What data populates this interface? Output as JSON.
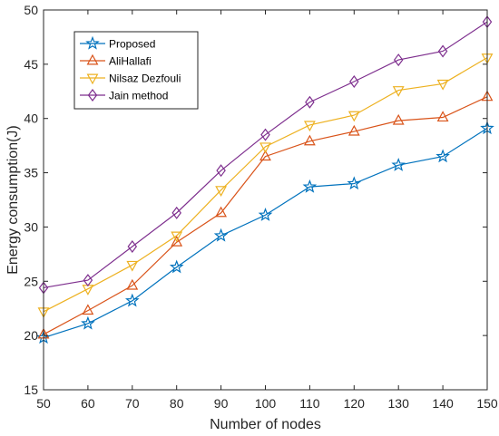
{
  "chart_data": {
    "type": "line",
    "title": "",
    "xlabel": "Number of nodes",
    "ylabel": "Energy consumption(J)",
    "x": [
      50,
      60,
      70,
      80,
      90,
      100,
      110,
      120,
      130,
      140,
      150
    ],
    "xlim": [
      50,
      150
    ],
    "ylim": [
      15,
      50
    ],
    "xticks": [
      "50",
      "60",
      "70",
      "80",
      "90",
      "100",
      "110",
      "120",
      "130",
      "140",
      "150"
    ],
    "yticks": [
      "15",
      "20",
      "25",
      "30",
      "35",
      "40",
      "45",
      "50"
    ],
    "grid": false,
    "legend_position": "top-left",
    "series": [
      {
        "name": "Proposed",
        "color": "#0072BD",
        "marker": "star",
        "values": [
          19.8,
          21.1,
          23.2,
          26.3,
          29.2,
          31.1,
          33.7,
          34.0,
          35.7,
          36.5,
          39.1
        ]
      },
      {
        "name": "AliHallafi",
        "color": "#D95319",
        "marker": "triangle-up",
        "values": [
          20.1,
          22.3,
          24.6,
          28.6,
          31.3,
          36.5,
          37.9,
          38.8,
          39.8,
          40.1,
          42.0
        ]
      },
      {
        "name": "Nilsaz Dezfouli",
        "color": "#EDB120",
        "marker": "triangle-down",
        "values": [
          22.2,
          24.3,
          26.5,
          29.2,
          33.4,
          37.4,
          39.4,
          40.3,
          42.6,
          43.2,
          45.6
        ]
      },
      {
        "name": "Jain method",
        "color": "#7E2F8E",
        "marker": "diamond",
        "values": [
          24.4,
          25.1,
          28.2,
          31.3,
          35.2,
          38.5,
          41.5,
          43.4,
          45.4,
          46.2,
          48.9
        ]
      }
    ]
  }
}
